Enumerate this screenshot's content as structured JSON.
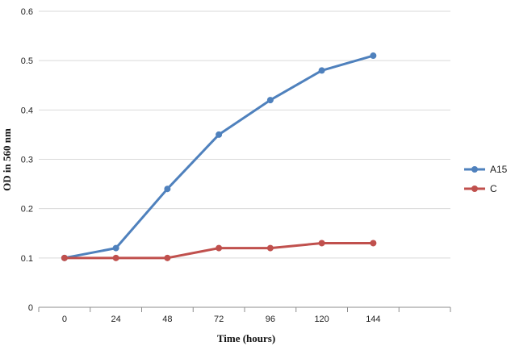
{
  "chart_data": {
    "type": "line",
    "title": "",
    "xlabel": "Time (hours)",
    "ylabel": "OD in 560 nm",
    "categories": [
      "0",
      "24",
      "48",
      "72",
      "96",
      "120",
      "144"
    ],
    "ylim": [
      0,
      0.6
    ],
    "yticks": [
      "0",
      "0.1",
      "0.2",
      "0.3",
      "0.4",
      "0.5",
      "0.6"
    ],
    "grid": true,
    "legend_position": "right",
    "series": [
      {
        "name": "A15",
        "color": "#4f81bd",
        "values": [
          0.1,
          0.12,
          0.24,
          0.35,
          0.42,
          0.48,
          0.51
        ]
      },
      {
        "name": "C",
        "color": "#c0504d",
        "values": [
          0.1,
          0.1,
          0.1,
          0.12,
          0.12,
          0.13,
          0.13
        ]
      }
    ]
  }
}
